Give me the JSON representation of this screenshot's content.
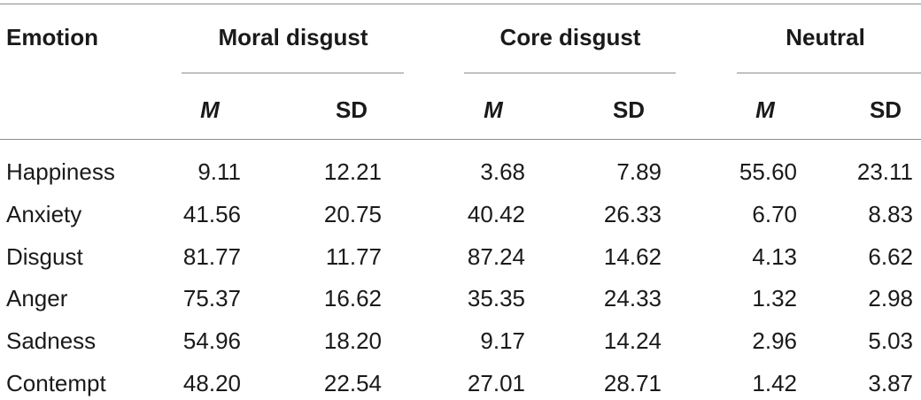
{
  "table": {
    "header": {
      "emotion": "Emotion",
      "groups": [
        "Moral disgust",
        "Core disgust",
        "Neutral"
      ],
      "subheaders": [
        "M",
        "SD",
        "M",
        "SD",
        "M",
        "SD"
      ]
    },
    "rows": [
      {
        "label": "Happiness",
        "values": [
          "9.11",
          "12.21",
          "3.68",
          "7.89",
          "55.60",
          "23.11"
        ]
      },
      {
        "label": "Anxiety",
        "values": [
          "41.56",
          "20.75",
          "40.42",
          "26.33",
          "6.70",
          "8.83"
        ]
      },
      {
        "label": "Disgust",
        "values": [
          "81.77",
          "11.77",
          "87.24",
          "14.62",
          "4.13",
          "6.62"
        ]
      },
      {
        "label": "Anger",
        "values": [
          "75.37",
          "16.62",
          "35.35",
          "24.33",
          "1.32",
          "2.98"
        ]
      },
      {
        "label": "Sadness",
        "values": [
          "54.96",
          "18.20",
          "9.17",
          "14.24",
          "2.96",
          "5.03"
        ]
      },
      {
        "label": "Contempt",
        "values": [
          "48.20",
          "22.54",
          "27.01",
          "28.71",
          "1.42",
          "3.87"
        ]
      }
    ]
  }
}
